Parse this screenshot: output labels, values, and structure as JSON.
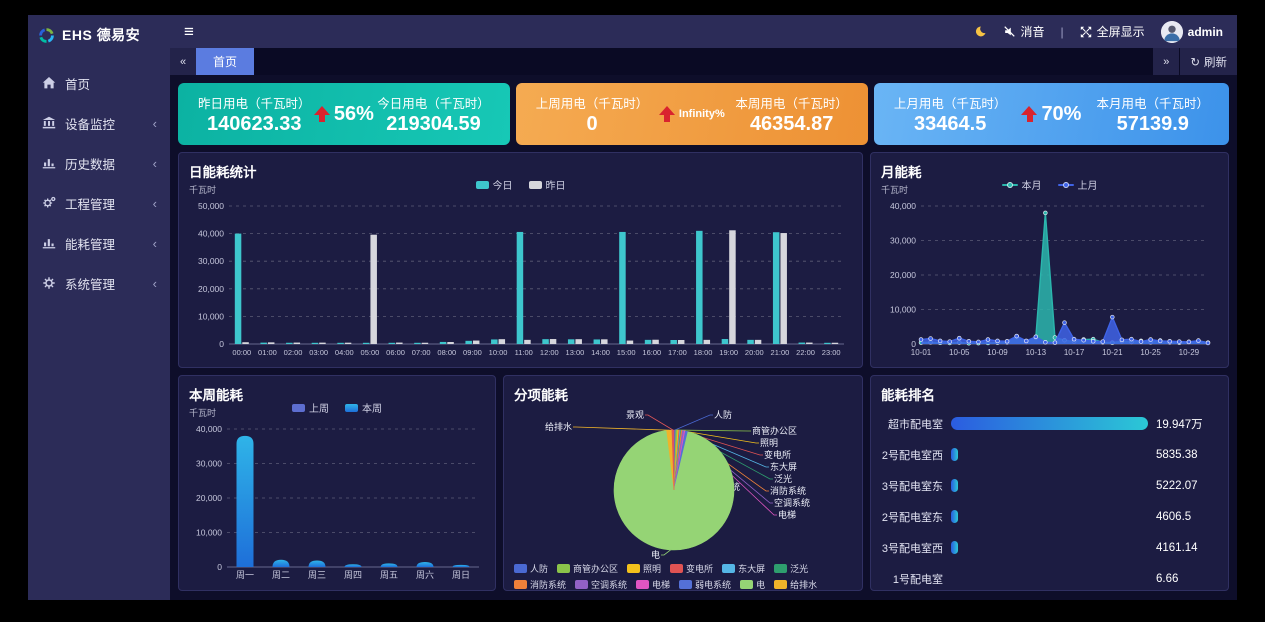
{
  "brand": {
    "short": "EHS",
    "name": "德易安"
  },
  "sidebar": {
    "items": [
      {
        "key": "home",
        "label": "首页",
        "icon": "home",
        "expandable": false
      },
      {
        "key": "device-monitor",
        "label": "设备监控",
        "icon": "bank",
        "expandable": true
      },
      {
        "key": "history-data",
        "label": "历史数据",
        "icon": "chart",
        "expandable": true
      },
      {
        "key": "project-mgmt",
        "label": "工程管理",
        "icon": "gears",
        "expandable": true
      },
      {
        "key": "energy-mgmt",
        "label": "能耗管理",
        "icon": "chart",
        "expandable": true
      },
      {
        "key": "system-mgmt",
        "label": "系统管理",
        "icon": "gear",
        "expandable": true
      }
    ]
  },
  "topbar": {
    "mute": "消音",
    "divider": "|",
    "fullscreen": "全屏显示",
    "user": "admin"
  },
  "tabbar": {
    "active_tab": "首页",
    "refresh": "刷新",
    "scroll_left": "«",
    "scroll_right": "»",
    "refresh_icon": "↻"
  },
  "kpi_cards": [
    {
      "left_label": "昨日用电（千瓦时）",
      "left_value": "140623.33",
      "delta": "56%",
      "right_label": "今日用电（千瓦时）",
      "right_value": "219304.59",
      "theme": "teal"
    },
    {
      "left_label": "上周用电（千瓦时）",
      "left_value": "0",
      "delta": "Infinity%",
      "right_label": "本周用电（千瓦时）",
      "right_value": "46354.87",
      "theme": "orange"
    },
    {
      "left_label": "上月用电（千瓦时）",
      "left_value": "33464.5",
      "delta": "70%",
      "right_label": "本月用电（千瓦时）",
      "right_value": "57139.9",
      "theme": "blue"
    }
  ],
  "chart_data": [
    {
      "id": "daily",
      "type": "bar",
      "title": "日能耗统计",
      "unit": "千瓦时",
      "ylim": [
        0,
        50000
      ],
      "ytick_step": 10000,
      "grid": "dashed",
      "legend_position": "top-center",
      "categories": [
        "00:00",
        "01:00",
        "02:00",
        "03:00",
        "04:00",
        "05:00",
        "06:00",
        "07:00",
        "08:00",
        "09:00",
        "10:00",
        "11:00",
        "12:00",
        "13:00",
        "14:00",
        "15:00",
        "16:00",
        "17:00",
        "18:00",
        "19:00",
        "20:00",
        "21:00",
        "22:00",
        "23:00"
      ],
      "series": [
        {
          "name": "今日",
          "color": "#3ec6cd",
          "values": [
            40000,
            500,
            450,
            400,
            380,
            420,
            350,
            320,
            750,
            1150,
            1650,
            40600,
            1750,
            1700,
            1650,
            40600,
            1500,
            1450,
            41000,
            1800,
            1500,
            40500,
            520,
            420
          ]
        },
        {
          "name": "昨日",
          "color": "#d6d6dc",
          "values": [
            650,
            600,
            520,
            500,
            480,
            39600,
            520,
            460,
            720,
            1250,
            1750,
            1500,
            1800,
            1750,
            1700,
            1250,
            1550,
            1450,
            1500,
            41200,
            1500,
            40200,
            520,
            460
          ]
        }
      ]
    },
    {
      "id": "monthly",
      "type": "area",
      "title": "月能耗",
      "unit": "千瓦时",
      "ylim": [
        0,
        40000
      ],
      "ytick_step": 10000,
      "grid": "dashed",
      "legend_position": "top-center",
      "xtick_every": 4,
      "x": [
        "10-01",
        "10-02",
        "10-03",
        "10-04",
        "10-05",
        "10-06",
        "10-07",
        "10-08",
        "10-09",
        "10-10",
        "10-11",
        "10-12",
        "10-13",
        "10-14",
        "10-15",
        "10-16",
        "10-17",
        "10-18",
        "10-19",
        "10-20",
        "10-21",
        "10-22",
        "10-23",
        "10-24",
        "10-25",
        "10-26",
        "10-27",
        "10-28",
        "10-29",
        "10-30",
        "10-31"
      ],
      "series": [
        {
          "name": "本月",
          "color": "#2bb6ad",
          "values": [
            400,
            500,
            350,
            300,
            450,
            200,
            250,
            300,
            400,
            500,
            2300,
            600,
            1900,
            38000,
            1900,
            1100,
            700,
            1300,
            1400,
            500,
            400,
            800,
            600,
            900,
            500,
            1000,
            500,
            400,
            600,
            900,
            400
          ]
        },
        {
          "name": "上月",
          "color": "#3f63e6",
          "values": [
            1300,
            1600,
            900,
            700,
            1700,
            800,
            600,
            1300,
            900,
            800,
            2300,
            900,
            2100,
            500,
            400,
            6200,
            1400,
            1100,
            800,
            700,
            7800,
            1200,
            1400,
            700,
            1300,
            900,
            800,
            700,
            600,
            1000,
            300
          ]
        }
      ]
    },
    {
      "id": "weekly",
      "type": "bar",
      "title": "本周能耗",
      "unit": "千瓦时",
      "ylim": [
        0,
        40000
      ],
      "ytick_step": 10000,
      "grid": "dashed",
      "legend_position": "top-center",
      "rounded": true,
      "categories": [
        "周一",
        "周二",
        "周三",
        "周四",
        "周五",
        "周六",
        "周日"
      ],
      "series": [
        {
          "name": "上周",
          "color": "#5d6ed0",
          "values": [
            0,
            0,
            0,
            0,
            0,
            0,
            0
          ]
        },
        {
          "name": "本周",
          "color": "#2fb4e8",
          "color2": "#1e6fd9",
          "values": [
            38000,
            2100,
            1900,
            800,
            1050,
            1450,
            600
          ]
        }
      ]
    },
    {
      "id": "pie",
      "type": "pie",
      "title": "分项能耗",
      "slices": [
        {
          "name": "人防",
          "value": 0.5,
          "color": "#4a69d2"
        },
        {
          "name": "商管办公区",
          "value": 0.5,
          "color": "#8bc34a"
        },
        {
          "name": "照明",
          "value": 0.3,
          "color": "#f3c11c"
        },
        {
          "name": "变电所",
          "value": 0.25,
          "color": "#e05353"
        },
        {
          "name": "东大屏",
          "value": 0.2,
          "color": "#55b6e5"
        },
        {
          "name": "泛光",
          "value": 0.2,
          "color": "#2e9e6e"
        },
        {
          "name": "消防系统",
          "value": 0.3,
          "color": "#f0813a"
        },
        {
          "name": "空调系统",
          "value": 0.5,
          "color": "#9161c6"
        },
        {
          "name": "电梯",
          "value": 0.3,
          "color": "#e055c2"
        },
        {
          "name": "弱电系统",
          "value": 0.7,
          "color": "#5470d6"
        },
        {
          "name": "电",
          "value": 94.3,
          "color": "#95d475"
        },
        {
          "name": "给排水",
          "value": 1.4,
          "color": "#f0b42a"
        },
        {
          "name": "景观",
          "value": 0.55,
          "color": "#e25757"
        }
      ]
    },
    {
      "id": "ranking",
      "type": "ranking",
      "title": "能耗排名",
      "items": [
        {
          "label": "超市配电室",
          "value": 199470,
          "display": "19.947万"
        },
        {
          "label": "2号配电室西",
          "value": 5835.38,
          "display": "5835.38"
        },
        {
          "label": "3号配电室东",
          "value": 5222.07,
          "display": "5222.07"
        },
        {
          "label": "2号配电室东",
          "value": 4606.5,
          "display": "4606.5"
        },
        {
          "label": "3号配电室西",
          "value": 4161.14,
          "display": "4161.14"
        },
        {
          "label": "1号配电室",
          "value": 6.66,
          "display": "6.66"
        }
      ]
    }
  ]
}
